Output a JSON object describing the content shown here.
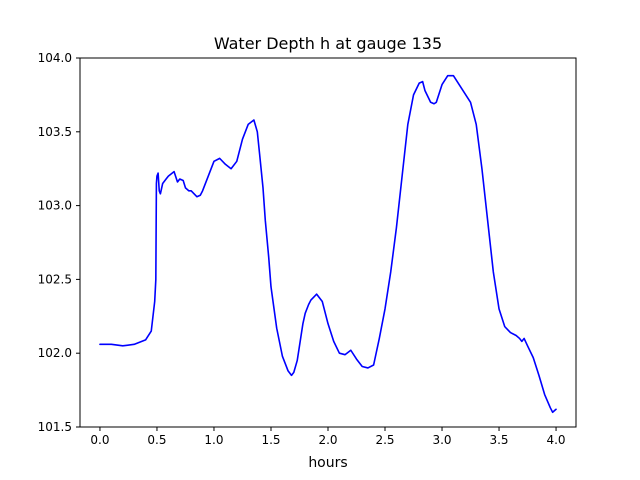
{
  "chart_data": {
    "type": "line",
    "title": "Water Depth h at gauge 135",
    "xlabel": "hours",
    "ylabel": "",
    "xlim": [
      -0.175,
      4.175
    ],
    "ylim": [
      101.5,
      104.0
    ],
    "xticks": [
      0.0,
      0.5,
      1.0,
      1.5,
      2.0,
      2.5,
      3.0,
      3.5,
      4.0
    ],
    "xtick_labels": [
      "0.0",
      "0.5",
      "1.0",
      "1.5",
      "2.0",
      "2.5",
      "3.0",
      "3.5",
      "4.0"
    ],
    "yticks": [
      101.5,
      102.0,
      102.5,
      103.0,
      103.5,
      104.0
    ],
    "ytick_labels": [
      "101.5",
      "102.0",
      "102.5",
      "103.0",
      "103.5",
      "104.0"
    ],
    "grid": false,
    "legend": "none",
    "series": [
      {
        "color": "#0000ff",
        "x": [
          0.0,
          0.1,
          0.2,
          0.3,
          0.4,
          0.45,
          0.48,
          0.49,
          0.495,
          0.5,
          0.51,
          0.52,
          0.53,
          0.55,
          0.58,
          0.6,
          0.65,
          0.68,
          0.7,
          0.73,
          0.75,
          0.78,
          0.8,
          0.85,
          0.88,
          0.9,
          0.95,
          1.0,
          1.05,
          1.1,
          1.15,
          1.2,
          1.25,
          1.3,
          1.35,
          1.38,
          1.4,
          1.43,
          1.45,
          1.48,
          1.5,
          1.55,
          1.6,
          1.65,
          1.68,
          1.7,
          1.73,
          1.75,
          1.78,
          1.8,
          1.83,
          1.85,
          1.9,
          1.95,
          2.0,
          2.05,
          2.1,
          2.15,
          2.2,
          2.25,
          2.3,
          2.35,
          2.4,
          2.45,
          2.5,
          2.55,
          2.6,
          2.65,
          2.7,
          2.75,
          2.8,
          2.83,
          2.85,
          2.9,
          2.93,
          2.95,
          3.0,
          3.05,
          3.1,
          3.15,
          3.2,
          3.25,
          3.3,
          3.35,
          3.4,
          3.45,
          3.5,
          3.55,
          3.6,
          3.65,
          3.68,
          3.7,
          3.72,
          3.75,
          3.8,
          3.85,
          3.9,
          3.95,
          3.97,
          4.0
        ],
        "y": [
          102.06,
          102.06,
          102.05,
          102.06,
          102.09,
          102.15,
          102.35,
          102.5,
          103.15,
          103.2,
          103.22,
          103.1,
          103.08,
          103.15,
          103.18,
          103.2,
          103.23,
          103.16,
          103.18,
          103.17,
          103.12,
          103.1,
          103.1,
          103.06,
          103.07,
          103.1,
          103.2,
          103.3,
          103.32,
          103.28,
          103.25,
          103.3,
          103.45,
          103.55,
          103.58,
          103.5,
          103.35,
          103.12,
          102.9,
          102.65,
          102.45,
          102.17,
          101.98,
          101.88,
          101.85,
          101.87,
          101.95,
          102.05,
          102.2,
          102.27,
          102.33,
          102.36,
          102.4,
          102.35,
          102.2,
          102.08,
          102.0,
          101.99,
          102.02,
          101.96,
          101.91,
          101.9,
          101.92,
          102.1,
          102.3,
          102.55,
          102.85,
          103.2,
          103.55,
          103.75,
          103.83,
          103.84,
          103.78,
          103.7,
          103.69,
          103.7,
          103.82,
          103.88,
          103.88,
          103.82,
          103.76,
          103.7,
          103.55,
          103.25,
          102.9,
          102.55,
          102.3,
          102.18,
          102.14,
          102.12,
          102.1,
          102.08,
          102.1,
          102.05,
          101.97,
          101.85,
          101.72,
          101.63,
          101.6,
          101.62
        ]
      }
    ]
  }
}
